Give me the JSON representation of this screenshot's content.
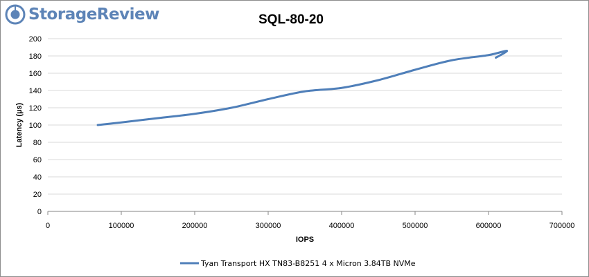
{
  "brand": {
    "name": "StorageReview",
    "logo_icon": "storagereview-logo-icon",
    "color": "#5d84b7"
  },
  "chart_data": {
    "type": "line",
    "title": "SQL-80-20",
    "xlabel": "IOPS",
    "ylabel": "Latency (µs)",
    "xlim": [
      0,
      700000
    ],
    "ylim": [
      0,
      200
    ],
    "xticks": [
      "0",
      "100000",
      "200000",
      "300000",
      "400000",
      "500000",
      "600000",
      "700000"
    ],
    "yticks": [
      "0",
      "20",
      "40",
      "60",
      "80",
      "100",
      "120",
      "140",
      "160",
      "180",
      "200"
    ],
    "grid": "horizontal",
    "legend_position": "bottom",
    "series": [
      {
        "name": "Tyan Transport HX TN83-B8251 4 x Micron 3.84TB NVMe",
        "color": "#4f7fb9",
        "points": [
          [
            68000,
            100
          ],
          [
            100000,
            103
          ],
          [
            150000,
            108
          ],
          [
            200000,
            113
          ],
          [
            250000,
            120
          ],
          [
            300000,
            130
          ],
          [
            350000,
            139
          ],
          [
            400000,
            143
          ],
          [
            450000,
            152
          ],
          [
            500000,
            164
          ],
          [
            550000,
            175
          ],
          [
            600000,
            181
          ],
          [
            625000,
            186
          ],
          [
            610000,
            178
          ]
        ]
      }
    ]
  }
}
